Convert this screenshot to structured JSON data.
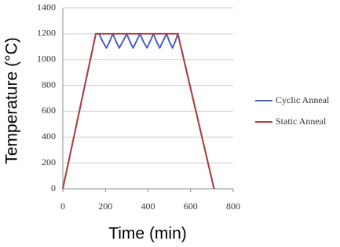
{
  "chart_data": {
    "type": "line",
    "xlabel": "Time (min)",
    "ylabel": "Temperature (°C)",
    "series": [
      {
        "name": "Cyclic Anneal",
        "color": "#4a5fc1",
        "x": [
          0,
          155,
          170,
          187,
          205,
          220,
          235,
          250,
          265,
          282,
          300,
          315,
          330,
          345,
          362,
          378,
          395,
          410,
          425,
          440,
          455,
          470,
          487,
          500,
          515,
          528,
          540,
          710
        ],
        "values": [
          0,
          1200,
          1200,
          1140,
          1090,
          1140,
          1200,
          1140,
          1090,
          1140,
          1200,
          1140,
          1090,
          1140,
          1200,
          1140,
          1090,
          1140,
          1200,
          1140,
          1090,
          1140,
          1200,
          1140,
          1090,
          1140,
          1200,
          0
        ]
      },
      {
        "name": "Static Anneal",
        "color": "#b0413e",
        "x": [
          0,
          155,
          540,
          710
        ],
        "values": [
          0,
          1200,
          1200,
          0
        ]
      }
    ],
    "xlim": [
      0,
      800
    ],
    "xticks": [
      0,
      200,
      400,
      600,
      800
    ],
    "ylim": [
      0,
      1400
    ],
    "yticks": [
      0,
      200,
      400,
      600,
      800,
      1000,
      1200,
      1400
    ],
    "grid": true,
    "legend": "right"
  }
}
